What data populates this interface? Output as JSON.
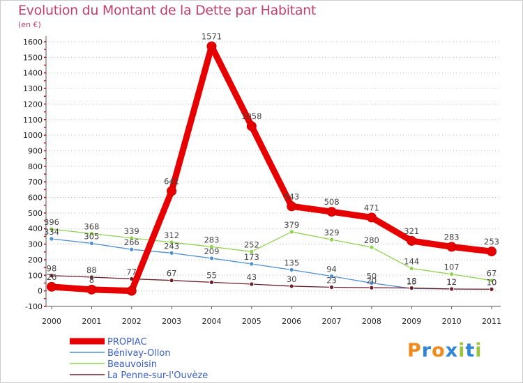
{
  "chart_data": {
    "type": "line",
    "title": "Evolution du Montant de la Dette par Habitant",
    "unit_label": "(en €)",
    "xlabel": "",
    "ylabel": "",
    "ylim": [
      -100,
      1600
    ],
    "y_ticks": [
      -100,
      0,
      100,
      200,
      300,
      400,
      500,
      600,
      700,
      800,
      900,
      1000,
      1100,
      1200,
      1300,
      1400,
      1500,
      1600
    ],
    "categories": [
      "2000",
      "2001",
      "2002",
      "2003",
      "2004",
      "2005",
      "2006",
      "2007",
      "2008",
      "2009",
      "2010",
      "2011"
    ],
    "grid": "horizontal dotted",
    "legend_position": "bottom-left",
    "series": [
      {
        "name": "PROPIAC",
        "color": "#e60000",
        "values": [
          26,
          8,
          0,
          641,
          1571,
          1058,
          543,
          508,
          471,
          321,
          283,
          253
        ],
        "labels": [
          "26",
          "8",
          "",
          "641",
          "1571",
          "1058",
          "543",
          "508",
          "471",
          "321",
          "283",
          "253"
        ]
      },
      {
        "name": "Bénivay-Ollon",
        "color": "#4f8fcd",
        "values": [
          334,
          305,
          266,
          243,
          209,
          173,
          135,
          94,
          50,
          15,
          12,
          10
        ],
        "labels": [
          "334",
          "305",
          "266",
          "243",
          "209",
          "173",
          "135",
          "94",
          "50",
          "15",
          "12",
          "10"
        ]
      },
      {
        "name": "Beauvoisin",
        "color": "#8fd14f",
        "values": [
          396,
          368,
          339,
          312,
          283,
          252,
          379,
          329,
          280,
          144,
          107,
          67
        ],
        "labels": [
          "396",
          "368",
          "339",
          "312",
          "283",
          "252",
          "379",
          "329",
          "280",
          "144",
          "107",
          "67"
        ]
      },
      {
        "name": "La Penne-sur-l'Ouvèze",
        "color": "#6b1f2a",
        "values": [
          98,
          88,
          77,
          67,
          55,
          43,
          30,
          23,
          20,
          18,
          12,
          10
        ],
        "labels": [
          "98",
          "88",
          "77",
          "67",
          "55",
          "43",
          "30",
          "23",
          "20",
          "18",
          "12",
          "10"
        ]
      }
    ]
  },
  "brand": {
    "text": "Proxiti",
    "letters": [
      "P",
      "r",
      "o",
      "x",
      "i",
      "t",
      "i"
    ],
    "colors": [
      "#f08a1c",
      "#2f86d6",
      "#f08a1c",
      "#2f86d6",
      "#9bc33c",
      "#2f86d6",
      "#9bc33c"
    ]
  }
}
